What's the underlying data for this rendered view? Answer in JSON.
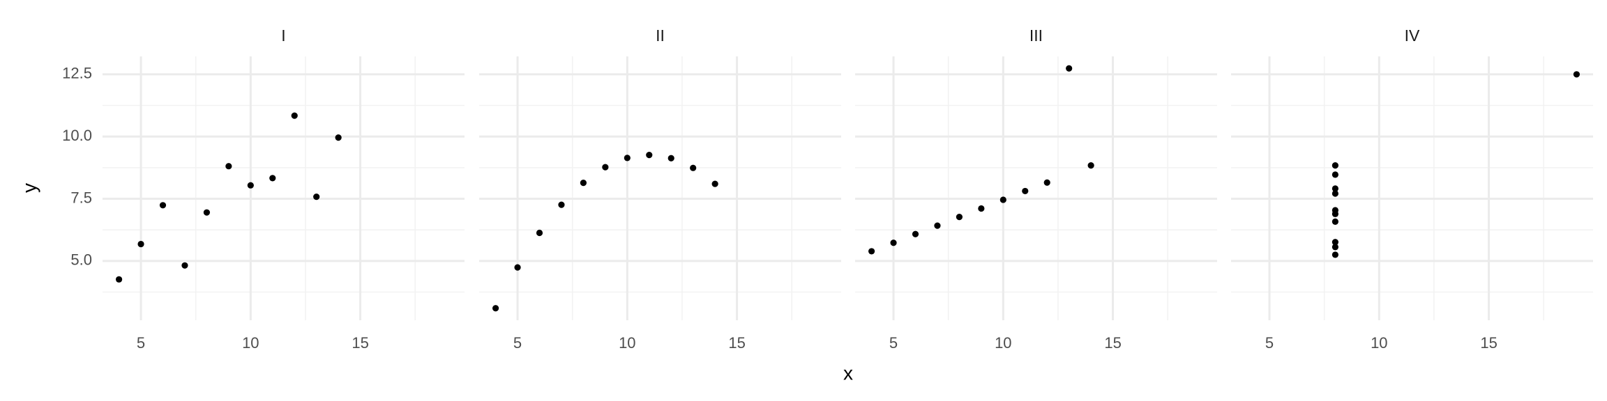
{
  "chart_data": {
    "type": "scatter",
    "xlabel": "x",
    "ylabel": "y",
    "color": "#000000",
    "grid": true,
    "xlim": [
      3.25,
      19.75
    ],
    "ylim": [
      2.618,
      13.222
    ],
    "xticks": [
      5,
      10,
      15
    ],
    "yticks": [
      {
        "value": 5,
        "label": "5.0"
      },
      7.5,
      {
        "value": 10,
        "label": "10.0"
      },
      12.5
    ],
    "x_minor_ticks": [
      7.5,
      12.5,
      17.5
    ],
    "y_minor_ticks": [
      3.75,
      6.25,
      8.75,
      11.25
    ],
    "facets": [
      {
        "title": "I",
        "x": [
          10,
          8,
          13,
          9,
          11,
          14,
          6,
          4,
          12,
          7,
          5
        ],
        "y": [
          8.04,
          6.95,
          7.58,
          8.81,
          8.33,
          9.96,
          7.24,
          4.26,
          10.84,
          4.82,
          5.68
        ]
      },
      {
        "title": "II",
        "x": [
          10,
          8,
          13,
          9,
          11,
          14,
          6,
          4,
          12,
          7,
          5
        ],
        "y": [
          9.14,
          8.14,
          8.74,
          8.77,
          9.26,
          8.1,
          6.13,
          3.1,
          9.13,
          7.26,
          4.74
        ]
      },
      {
        "title": "III",
        "x": [
          10,
          8,
          13,
          9,
          11,
          14,
          6,
          4,
          12,
          7,
          5
        ],
        "y": [
          7.46,
          6.77,
          12.74,
          7.11,
          7.81,
          8.84,
          6.08,
          5.39,
          8.15,
          6.42,
          5.73
        ]
      },
      {
        "title": "IV",
        "x": [
          8,
          8,
          8,
          8,
          8,
          8,
          8,
          19,
          8,
          8,
          8
        ],
        "y": [
          6.58,
          5.76,
          7.71,
          8.84,
          8.47,
          7.04,
          5.25,
          12.5,
          5.56,
          7.91,
          6.89
        ]
      }
    ]
  }
}
